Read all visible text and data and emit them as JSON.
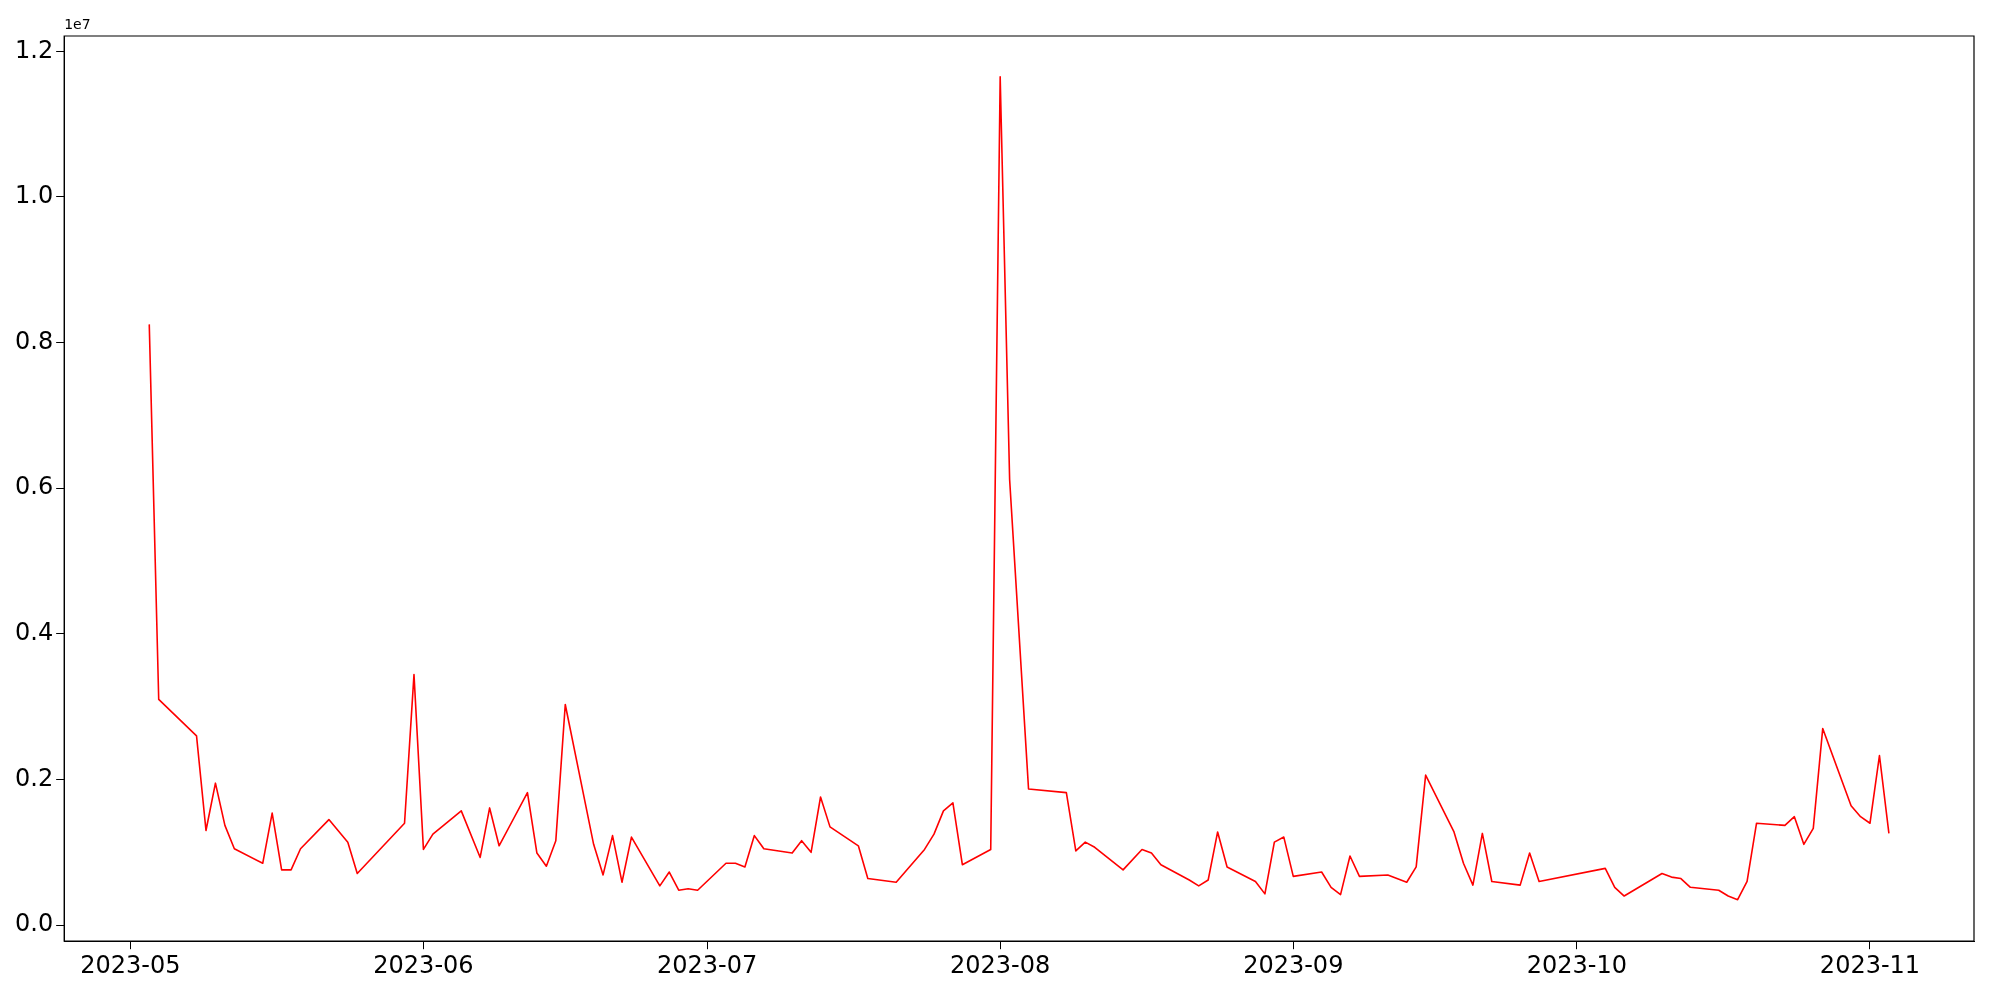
{
  "chart_data": {
    "type": "line",
    "annotations": [
      "1e7"
    ],
    "marker": "none",
    "grid": false,
    "legend": false,
    "xlim": [
      "2023-04-24",
      "2023-11-12"
    ],
    "xticks": [
      "2023-05",
      "2023-06",
      "2023-07",
      "2023-08",
      "2023-09",
      "2023-10",
      "2023-11"
    ],
    "ylim": [
      -0.022,
      1.221
    ],
    "yticks": [
      {
        "value": 0,
        "label": "0.0"
      },
      {
        "value": 0.2,
        "label": "0.2"
      },
      {
        "value": 0.4,
        "label": "0.4"
      },
      {
        "value": 0.6,
        "label": "0.6"
      },
      {
        "value": 0.8,
        "label": "0.8"
      },
      {
        "value": 1,
        "label": "1.0"
      },
      {
        "value": 1.2,
        "label": "1.2"
      }
    ],
    "x": [
      "2023-05-03",
      "2023-05-04",
      "2023-05-08",
      "2023-05-09",
      "2023-05-10",
      "2023-05-11",
      "2023-05-12",
      "2023-05-15",
      "2023-05-16",
      "2023-05-17",
      "2023-05-18",
      "2023-05-19",
      "2023-05-22",
      "2023-05-24",
      "2023-05-25",
      "2023-05-30",
      "2023-05-31",
      "2023-06-01",
      "2023-06-02",
      "2023-06-05",
      "2023-06-07",
      "2023-06-08",
      "2023-06-09",
      "2023-06-12",
      "2023-06-13",
      "2023-06-14",
      "2023-06-15",
      "2023-06-16",
      "2023-06-19",
      "2023-06-20",
      "2023-06-21",
      "2023-06-22",
      "2023-06-23",
      "2023-06-26",
      "2023-06-27",
      "2023-06-28",
      "2023-06-29",
      "2023-06-30",
      "2023-07-03",
      "2023-07-04",
      "2023-07-05",
      "2023-07-06",
      "2023-07-07",
      "2023-07-10",
      "2023-07-11",
      "2023-07-12",
      "2023-07-13",
      "2023-07-14",
      "2023-07-17",
      "2023-07-18",
      "2023-07-21",
      "2023-07-24",
      "2023-07-25",
      "2023-07-26",
      "2023-07-27",
      "2023-07-28",
      "2023-07-31",
      "2023-08-01",
      "2023-08-02",
      "2023-08-04",
      "2023-08-08",
      "2023-08-09",
      "2023-08-10",
      "2023-08-11",
      "2023-08-14",
      "2023-08-16",
      "2023-08-17",
      "2023-08-18",
      "2023-08-21",
      "2023-08-22",
      "2023-08-23",
      "2023-08-24",
      "2023-08-25",
      "2023-08-28",
      "2023-08-29",
      "2023-08-30",
      "2023-08-31",
      "2023-09-01",
      "2023-09-04",
      "2023-09-05",
      "2023-09-06",
      "2023-09-07",
      "2023-09-08",
      "2023-09-11",
      "2023-09-13",
      "2023-09-14",
      "2023-09-15",
      "2023-09-18",
      "2023-09-19",
      "2023-09-20",
      "2023-09-21",
      "2023-09-22",
      "2023-09-25",
      "2023-09-26",
      "2023-09-27",
      "2023-10-04",
      "2023-10-05",
      "2023-10-06",
      "2023-10-10",
      "2023-10-11",
      "2023-10-12",
      "2023-10-13",
      "2023-10-16",
      "2023-10-17",
      "2023-10-18",
      "2023-10-19",
      "2023-10-20",
      "2023-10-23",
      "2023-10-24",
      "2023-10-25",
      "2023-10-26",
      "2023-10-27",
      "2023-10-30",
      "2023-10-31",
      "2023-11-01",
      "2023-11-02",
      "2023-11-03"
    ],
    "series": [
      {
        "color": "#ff0000",
        "values": [
          0.825,
          0.31,
          0.26,
          0.13,
          0.195,
          0.137,
          0.105,
          0.085,
          0.154,
          0.076,
          0.076,
          0.105,
          0.145,
          0.114,
          0.071,
          0.14,
          0.344,
          0.104,
          0.125,
          0.157,
          0.093,
          0.161,
          0.109,
          0.182,
          0.099,
          0.081,
          0.116,
          0.303,
          0.111,
          0.069,
          0.123,
          0.059,
          0.121,
          0.054,
          0.073,
          0.048,
          0.05,
          0.048,
          0.085,
          0.085,
          0.08,
          0.123,
          0.105,
          0.099,
          0.116,
          0.1,
          0.176,
          0.135,
          0.109,
          0.064,
          0.059,
          0.104,
          0.125,
          0.157,
          0.168,
          0.083,
          0.104,
          1.165,
          0.612,
          0.187,
          0.182,
          0.102,
          0.114,
          0.107,
          0.076,
          0.104,
          0.099,
          0.083,
          0.062,
          0.054,
          0.062,
          0.128,
          0.08,
          0.06,
          0.043,
          0.114,
          0.121,
          0.067,
          0.073,
          0.052,
          0.042,
          0.095,
          0.067,
          0.069,
          0.059,
          0.08,
          0.206,
          0.128,
          0.085,
          0.055,
          0.126,
          0.06,
          0.055,
          0.099,
          0.06,
          0.078,
          0.052,
          0.04,
          0.071,
          0.066,
          0.064,
          0.052,
          0.048,
          0.04,
          0.035,
          0.06,
          0.14,
          0.137,
          0.149,
          0.111,
          0.133,
          0.27,
          0.164,
          0.149,
          0.14,
          0.233,
          0.126
        ]
      }
    ]
  }
}
